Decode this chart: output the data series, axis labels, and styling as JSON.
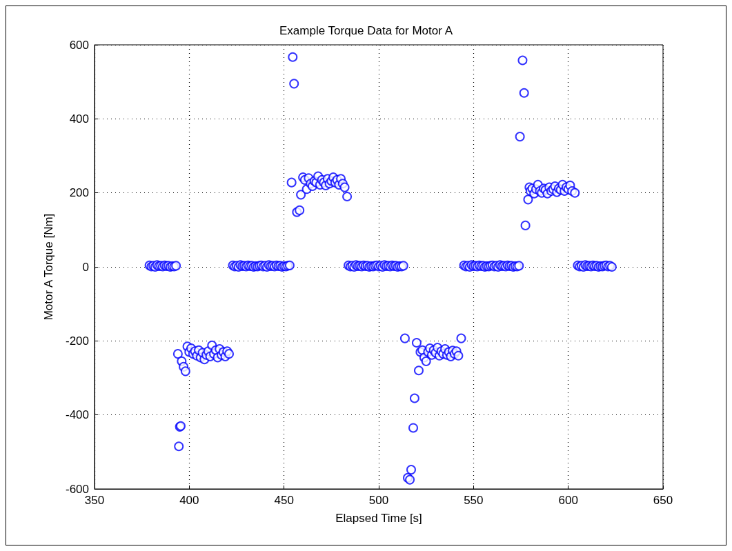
{
  "chart_data": {
    "type": "scatter",
    "title": "Example Torque Data for Motor A",
    "xlabel": "Elapsed Time [s]",
    "ylabel": "Motor A Torque [Nm]",
    "xlim": [
      350,
      650
    ],
    "xticks": [
      350,
      400,
      450,
      500,
      550,
      600,
      650
    ],
    "ylim": [
      -600,
      600
    ],
    "yticks": [
      -600,
      -400,
      -200,
      0,
      200,
      400,
      600
    ],
    "grid": true,
    "marker": "circle",
    "series": [
      {
        "color": "#0000ff",
        "x": [
          379,
          380,
          381,
          382,
          383,
          384,
          385,
          386,
          387,
          388,
          389,
          390,
          391,
          392,
          393,
          394,
          394.5,
          395,
          395.5,
          396,
          397,
          398,
          399,
          400,
          401,
          402,
          403,
          404,
          405,
          406,
          407,
          408,
          409,
          410,
          411,
          412,
          413,
          414,
          415,
          416,
          417,
          418,
          419,
          420,
          421,
          423,
          424,
          425,
          426,
          427,
          428,
          429,
          430,
          431,
          432,
          433,
          434,
          435,
          436,
          437,
          438,
          439,
          440,
          441,
          442,
          443,
          444,
          445,
          446,
          447,
          448,
          449,
          450,
          451,
          452,
          453,
          454,
          454.6,
          455.3,
          456.8,
          458.2,
          458.9,
          460,
          461,
          462,
          463,
          464,
          465,
          466,
          467,
          468,
          469,
          470,
          471,
          472,
          473,
          474,
          475,
          476,
          477,
          478,
          479,
          480,
          481,
          482,
          483.3,
          484,
          485,
          486,
          487,
          488,
          489,
          490,
          491,
          492,
          493,
          494,
          495,
          496,
          497,
          498,
          499,
          500,
          501,
          502,
          503,
          504,
          505,
          506,
          507,
          508,
          509,
          510,
          511,
          512,
          513,
          513.8,
          515.3,
          516.4,
          517.1,
          518.2,
          518.9,
          520,
          521.1,
          522,
          523,
          524,
          525,
          526,
          527,
          528,
          529,
          530,
          531,
          532,
          533,
          534,
          535,
          536,
          537,
          538,
          539,
          540,
          541,
          542,
          543.5,
          545,
          546,
          547,
          548,
          549,
          550,
          551,
          552,
          553,
          554,
          555,
          556,
          557,
          558,
          559,
          560,
          561,
          562,
          563,
          564,
          565,
          566,
          567,
          568,
          569,
          570,
          571,
          572,
          573,
          574,
          574.5,
          575.9,
          576.7,
          577.4,
          578.8,
          579.5,
          580,
          581,
          582,
          583,
          584,
          585,
          586,
          587,
          588,
          589,
          590,
          591,
          592,
          593,
          594,
          595,
          596,
          597,
          598,
          599,
          600,
          601,
          602,
          603.5,
          605,
          606,
          607,
          608,
          609,
          610,
          611,
          612,
          613,
          614,
          615,
          616,
          617,
          618,
          619,
          620,
          621,
          622,
          623
        ],
        "values": [
          4,
          1,
          3,
          0,
          5,
          2,
          3,
          1,
          4,
          2,
          3,
          0,
          2,
          1,
          3,
          -235,
          -485,
          -432,
          -430,
          -255,
          -270,
          -282,
          -215,
          -230,
          -220,
          -235,
          -228,
          -240,
          -225,
          -245,
          -232,
          -250,
          -238,
          -228,
          -242,
          -212,
          -235,
          -225,
          -245,
          -222,
          -238,
          -230,
          -242,
          -228,
          -235,
          4,
          1,
          3,
          0,
          5,
          2,
          3,
          1,
          4,
          2,
          3,
          0,
          2,
          1,
          3,
          4,
          1,
          3,
          0,
          5,
          2,
          3,
          1,
          4,
          2,
          3,
          0,
          2,
          1,
          3,
          4,
          228,
          567,
          495,
          148,
          153,
          195,
          242,
          235,
          210,
          240,
          225,
          218,
          232,
          228,
          245,
          222,
          235,
          228,
          220,
          238,
          225,
          232,
          242,
          228,
          235,
          222,
          238,
          225,
          215,
          190,
          4,
          1,
          3,
          0,
          5,
          2,
          3,
          1,
          4,
          2,
          3,
          0,
          2,
          1,
          3,
          4,
          1,
          3,
          0,
          5,
          2,
          3,
          1,
          4,
          2,
          3,
          0,
          2,
          1,
          3,
          -193,
          -570,
          -575,
          -548,
          -435,
          -355,
          -205,
          -280,
          -230,
          -225,
          -245,
          -255,
          -230,
          -220,
          -238,
          -225,
          -232,
          -218,
          -240,
          -228,
          -235,
          -222,
          -238,
          -230,
          -242,
          -226,
          -235,
          -228,
          -240,
          -193,
          4,
          1,
          3,
          0,
          5,
          2,
          3,
          1,
          4,
          2,
          3,
          0,
          2,
          1,
          3,
          4,
          1,
          3,
          0,
          5,
          2,
          3,
          1,
          4,
          2,
          3,
          0,
          2,
          1,
          3,
          352,
          558,
          470,
          112,
          182,
          215,
          205,
          212,
          198,
          210,
          222,
          205,
          200,
          212,
          208,
          198,
          215,
          205,
          210,
          218,
          202,
          212,
          208,
          222,
          205,
          215,
          210,
          220,
          205,
          200,
          4,
          1,
          3,
          0,
          5,
          2,
          3,
          1,
          4,
          2,
          3,
          0,
          2,
          1,
          3,
          4,
          1,
          3,
          0
        ]
      }
    ]
  }
}
